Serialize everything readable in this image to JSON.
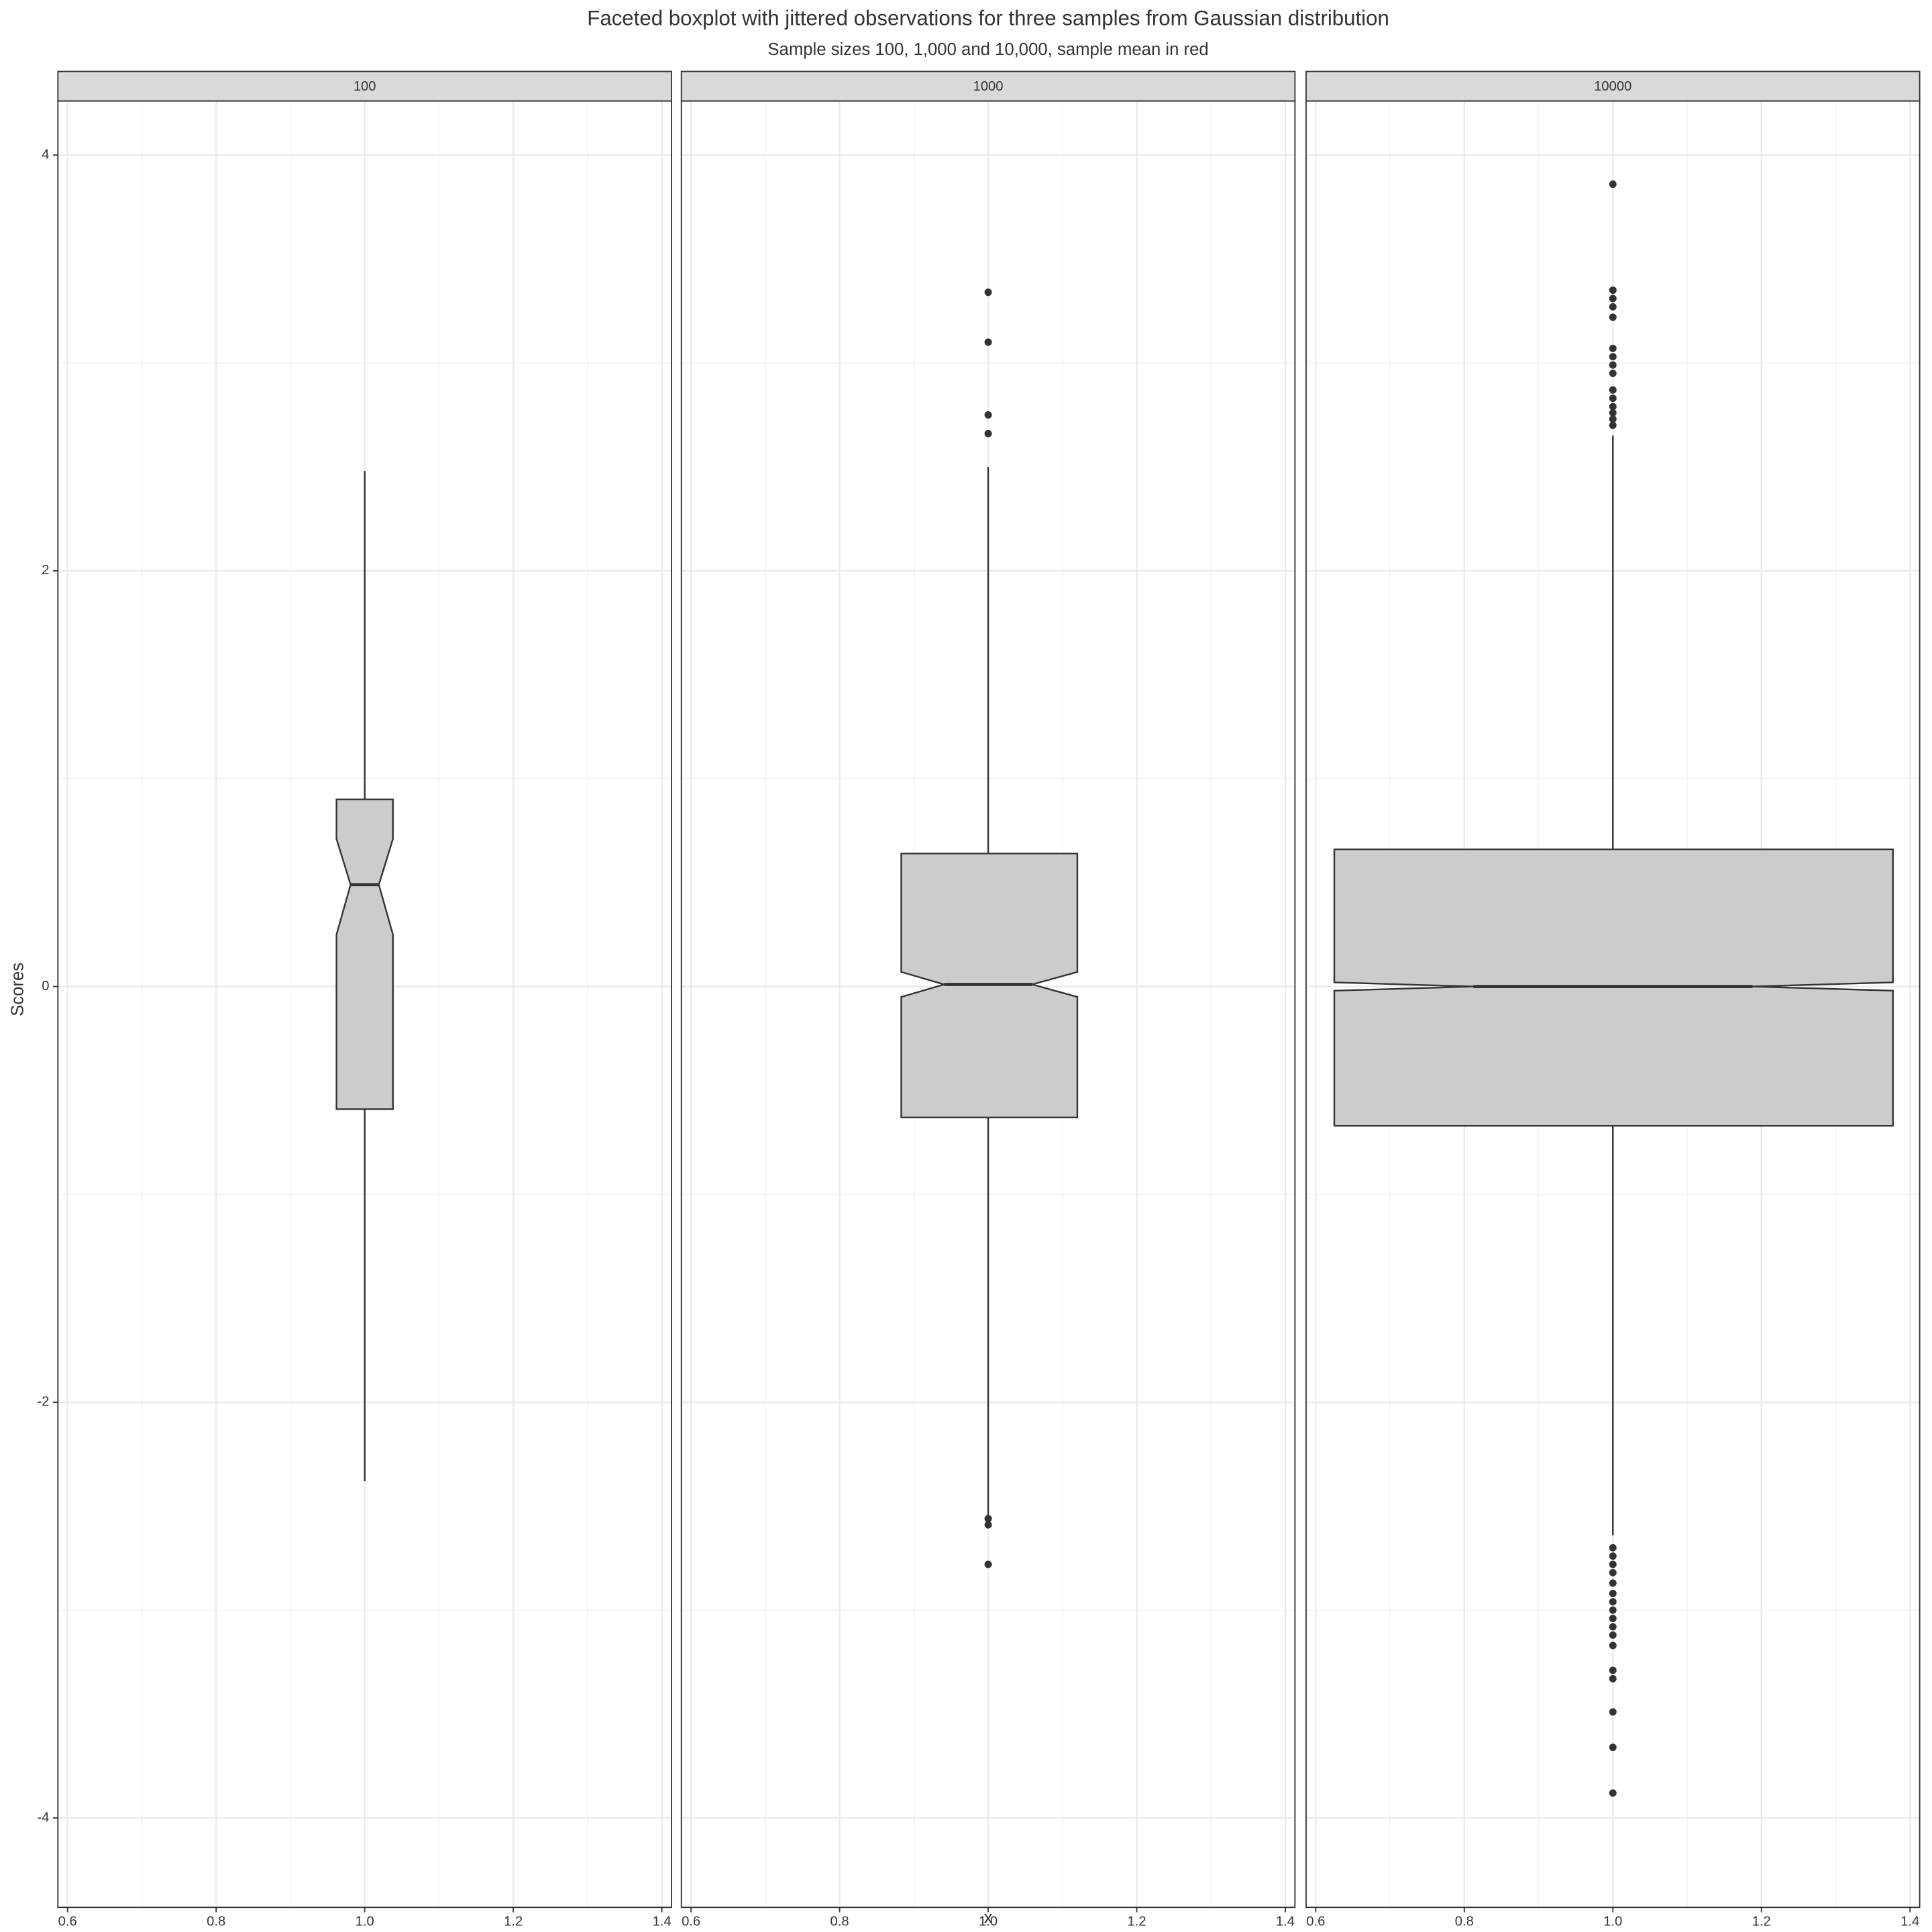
{
  "chart_data": {
    "type": "boxplot",
    "title": "Faceted boxplot with jittered observations for three samples from Gaussian distribution",
    "subtitle": "Sample sizes 100, 1,000 and 10,000, sample mean in red",
    "x_label": "x",
    "y_label": "Scores",
    "xlim": [
      0.587,
      1.413
    ],
    "ylim": [
      -4.43,
      4.26
    ],
    "xticks": [
      0.6,
      0.8,
      {
        "value": 1,
        "label": "1.0"
      },
      1.2,
      1.4
    ],
    "yticks": [
      -4,
      -2,
      0,
      2,
      4
    ],
    "grid": true,
    "box_color": "#cccccc",
    "line_color": "#333333",
    "facets": [
      {
        "name": "100",
        "x": 1,
        "box_x": [
          0.962,
          1.038
        ],
        "whisker_low": -2.38,
        "q1": -0.59,
        "median": 0.49,
        "q3": 0.9,
        "whisker_high": 2.48,
        "notch": [
          0.25,
          0.71
        ],
        "outliers": []
      },
      {
        "name": "1000",
        "x": 1,
        "box_x": [
          0.883,
          1.12
        ],
        "whisker_low": -2.55,
        "q1": -0.63,
        "median": 0.01,
        "q3": 0.64,
        "whisker_high": 2.5,
        "notch": [
          -0.05,
          0.07
        ],
        "outliers": [
          3.34,
          3.1,
          2.75,
          2.66,
          -2.56,
          -2.59,
          -2.78
        ]
      },
      {
        "name": "10000",
        "x": 1,
        "box_x": [
          0.625,
          1.377
        ],
        "whisker_low": -2.64,
        "q1": -0.67,
        "median": 0,
        "q3": 0.66,
        "whisker_high": 2.65,
        "notch": [
          -0.02,
          0.02
        ],
        "outliers": [
          3.86,
          3.35,
          3.31,
          3.27,
          3.22,
          3.07,
          3.03,
          2.99,
          2.95,
          2.87,
          2.83,
          2.79,
          2.76,
          2.73,
          2.7,
          -2.7,
          -2.74,
          -2.78,
          -2.82,
          -2.87,
          -2.92,
          -2.96,
          -3.0,
          -3.04,
          -3.08,
          -3.12,
          -3.17,
          -3.29,
          -3.33,
          -3.49,
          -3.66,
          -3.88
        ]
      }
    ]
  }
}
